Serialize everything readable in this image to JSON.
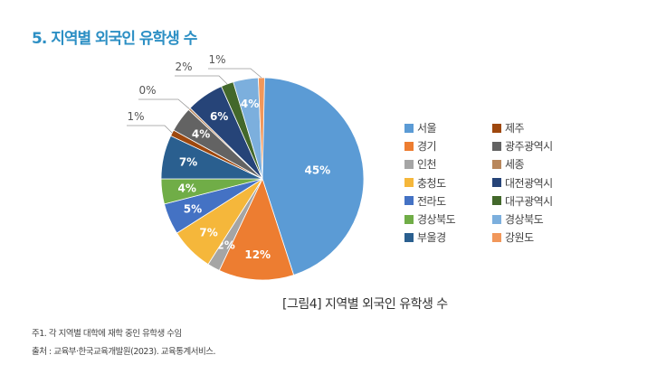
{
  "title": "5. 지역별 외국인 유학생 수",
  "chart_data": {
    "type": "pie",
    "title": "[그림4] 지역별 외국인 유학생 수",
    "start": "top",
    "direction": "clockwise",
    "slices": [
      {
        "name": "서울",
        "value": 45,
        "label": "45%",
        "color": "#5b9bd5"
      },
      {
        "name": "경기",
        "value": 12,
        "label": "12%",
        "color": "#ed7d31"
      },
      {
        "name": "인천",
        "value": 2,
        "label": "2%",
        "color": "#a5a5a5"
      },
      {
        "name": "충청도",
        "value": 7,
        "label": "7%",
        "color": "#f5b73b"
      },
      {
        "name": "전라도",
        "value": 5,
        "label": "5%",
        "color": "#4472c4"
      },
      {
        "name": "경상북도",
        "value": 4,
        "label": "4%",
        "color": "#70ad47"
      },
      {
        "name": "부울경",
        "value": 7,
        "label": "7%",
        "color": "#2a5f8f"
      },
      {
        "name": "제주",
        "value": 1,
        "label": "1%",
        "color": "#9e480e"
      },
      {
        "name": "광주광역시",
        "value": 4,
        "label": "4%",
        "color": "#636363"
      },
      {
        "name": "세종",
        "value": 0,
        "label": "0%",
        "color": "#b8875c"
      },
      {
        "name": "대전광역시",
        "value": 6,
        "label": "6%",
        "color": "#264478"
      },
      {
        "name": "대구광역시",
        "value": 2,
        "label": "2%",
        "color": "#43682b"
      },
      {
        "name": "경상북도",
        "value": 4,
        "label": "4%",
        "color": "#7cafdd"
      },
      {
        "name": "강원도",
        "value": 1,
        "label": "1%",
        "color": "#f1975a"
      }
    ],
    "legend_order": [
      0,
      7,
      1,
      8,
      2,
      9,
      3,
      10,
      4,
      11,
      5,
      12,
      6,
      13
    ],
    "legend": "right"
  },
  "notes": [
    "주1. 각 지역별 대학에 재학 중인 유학생 수임",
    "출처 : 교육부·한국교육개발원(2023). 교육통계서비스."
  ]
}
